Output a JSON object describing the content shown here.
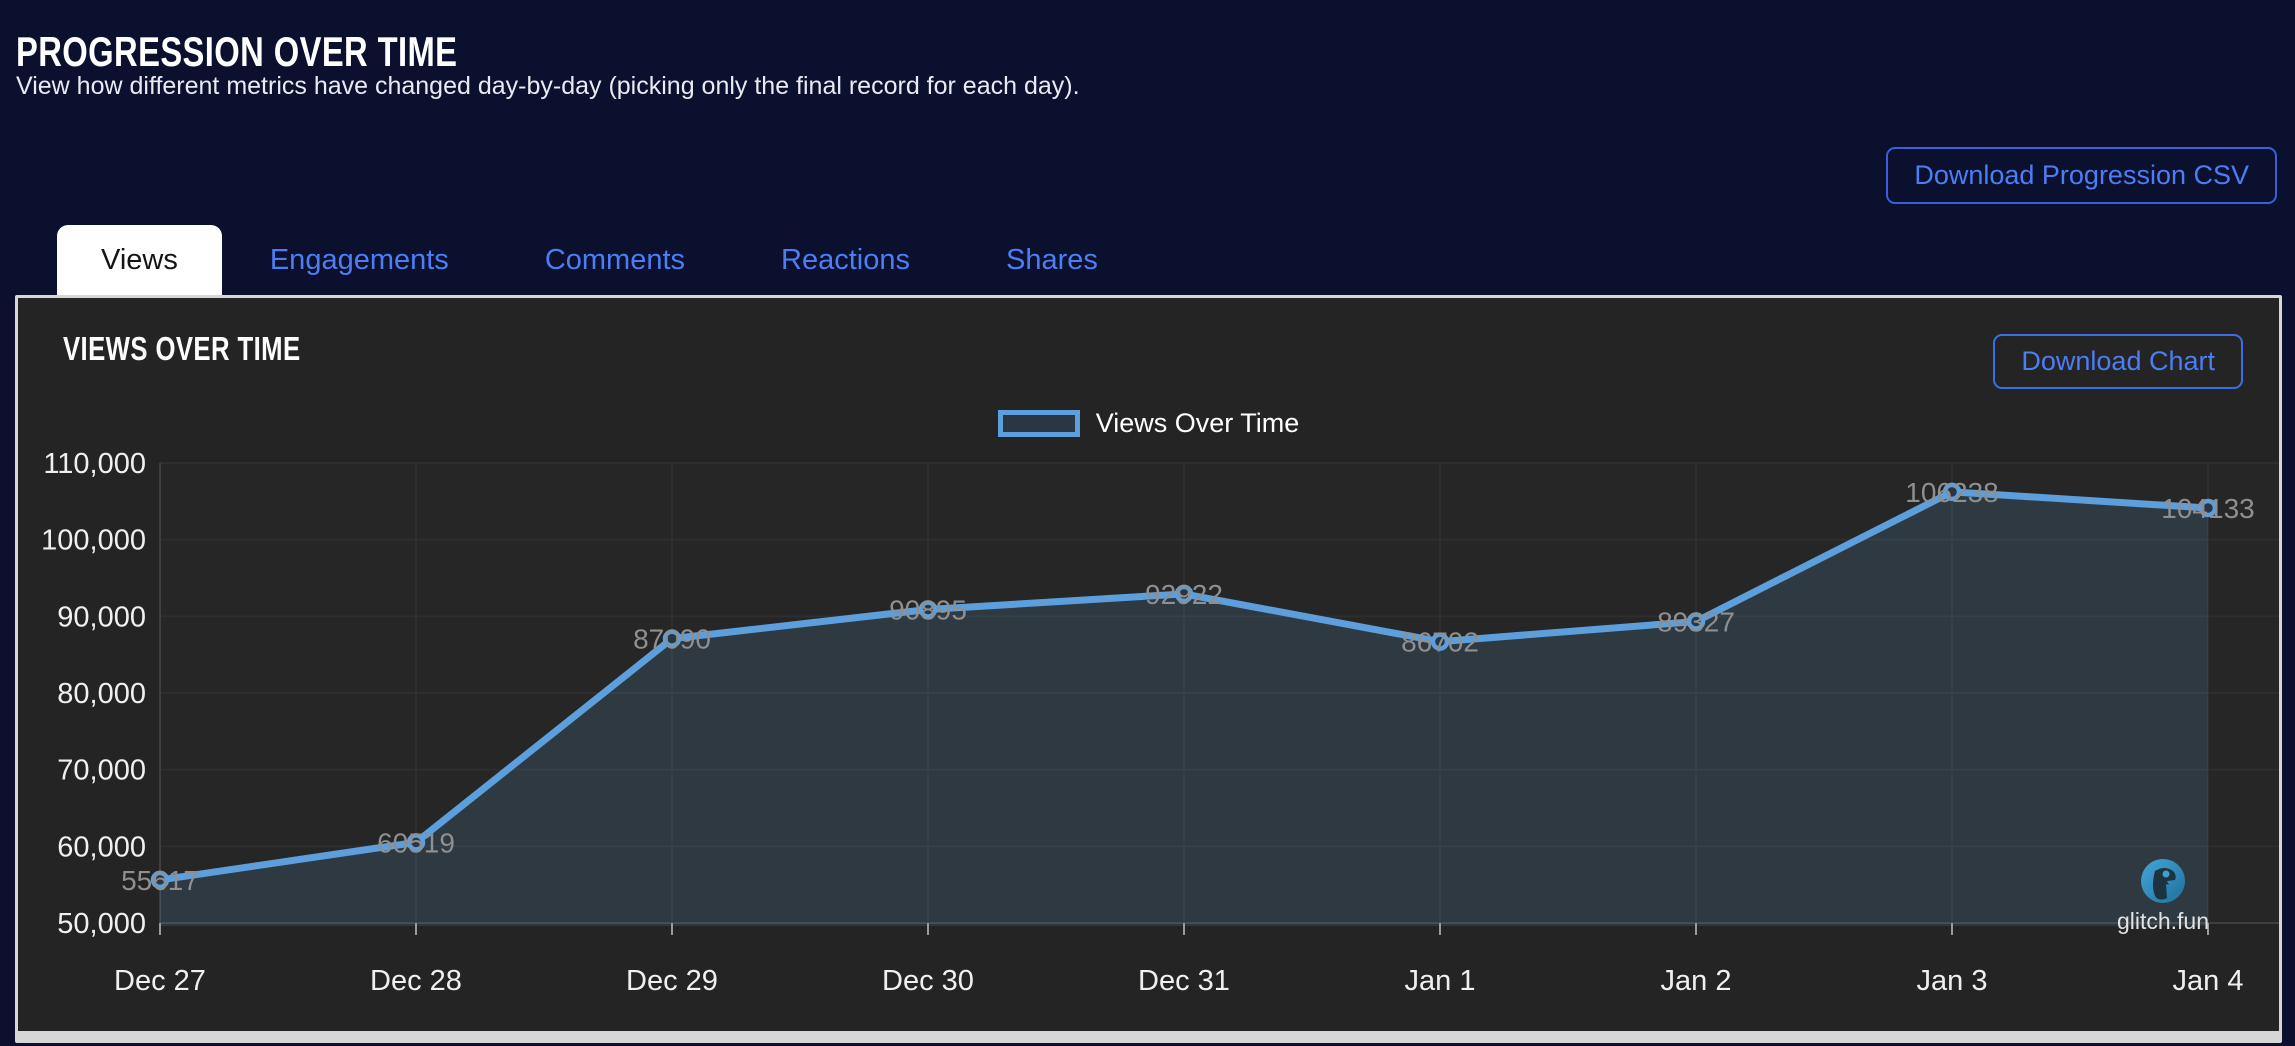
{
  "page": {
    "title": "PROGRESSION OVER TIME",
    "subtitle": "View how different metrics have changed day-by-day (picking only the final record for each day).",
    "download_csv_label": "Download Progression CSV"
  },
  "tabs": [
    {
      "label": "Views",
      "active": true
    },
    {
      "label": "Engagements",
      "active": false
    },
    {
      "label": "Comments",
      "active": false
    },
    {
      "label": "Reactions",
      "active": false
    },
    {
      "label": "Shares",
      "active": false
    }
  ],
  "panel": {
    "title": "VIEWS OVER TIME",
    "download_chart_label": "Download Chart",
    "watermark": "glitch.fun",
    "watermark_icon": "glitchfun-logo-icon"
  },
  "colors": {
    "page_bg": "#0a102e",
    "panel_bg": "#242424",
    "accent_blue": "#4d7df5",
    "line_blue": "#5c9fdc"
  },
  "chart_data": {
    "type": "line",
    "title": "Views Over Time",
    "legend_label": "Views Over Time",
    "legend_position": "top",
    "x": [
      "Dec 27",
      "Dec 28",
      "Dec 29",
      "Dec 30",
      "Dec 31",
      "Jan 1",
      "Jan 2",
      "Jan 3",
      "Jan 4"
    ],
    "series": [
      {
        "name": "Views Over Time",
        "values": [
          55617,
          60519,
          87090,
          90895,
          92922,
          86702,
          89327,
          106238,
          104133
        ]
      }
    ],
    "ylim": [
      50000,
      110000
    ],
    "yticks": [
      50000,
      60000,
      70000,
      80000,
      90000,
      100000,
      110000
    ],
    "grid": true,
    "area_fill": true,
    "point_labels": true,
    "colors": {
      "line": "#5c9fdc",
      "fill": "rgba(92,159,220,0.16)",
      "point_fill": "#2b3644",
      "label": "#8f8f8f",
      "grid": "#2e2e2e",
      "axis": "#3f3f3f",
      "tick_text": "#f0f0f0"
    }
  }
}
